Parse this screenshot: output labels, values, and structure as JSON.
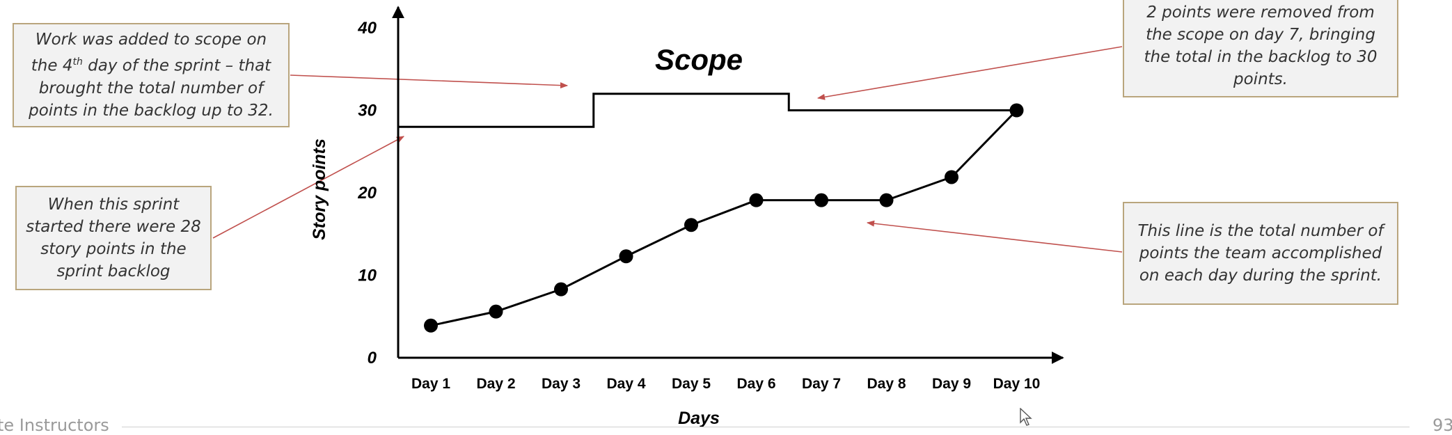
{
  "chart_data": {
    "type": "line",
    "title": "Scope",
    "xlabel": "Days",
    "ylabel": "Story points",
    "ylim": [
      0,
      40
    ],
    "y_ticks": [
      "0",
      "10",
      "20",
      "30",
      "40"
    ],
    "categories": [
      "Day 1",
      "Day 2",
      "Day 3",
      "Day 4",
      "Day 5",
      "Day 6",
      "Day 7",
      "Day 8",
      "Day 9",
      "Day 10"
    ],
    "grid": false,
    "series": [
      {
        "values": [
          3.9,
          5.6,
          8.3,
          12.3,
          16.1,
          19.1,
          19.1,
          19.1,
          21.9,
          30.0
        ],
        "marker": "circle",
        "color": "#000000"
      }
    ],
    "scope_line": {
      "steps": [
        {
          "from": 0.6,
          "to": 3.5,
          "value": 28
        },
        {
          "from": 3.5,
          "to": 6.5,
          "value": 32
        },
        {
          "from": 6.5,
          "to": 10,
          "value": 30
        }
      ],
      "color": "#000000"
    }
  },
  "annotations": {
    "added": [
      "Work was added to scope on",
      "the 4",
      "th",
      " day of the sprint – that",
      "brought the total number of",
      "points in the backlog up to 32."
    ],
    "started": [
      "When this sprint",
      "started there were 28",
      "story points in the",
      "sprint backlog"
    ],
    "removed": [
      "2 points were removed from",
      "the scope on day 7, bringing",
      "the total in the backlog to 30",
      "points."
    ],
    "accomplished": [
      "This line is the total number of",
      "points the team accomplished",
      "on each day during the sprint."
    ]
  },
  "colors": {
    "arrow": "#c0504d",
    "box_border": "#b9a57d",
    "box_fill": "#f2f2f2"
  },
  "footer": {
    "left": "te Instructors",
    "right": "93"
  }
}
